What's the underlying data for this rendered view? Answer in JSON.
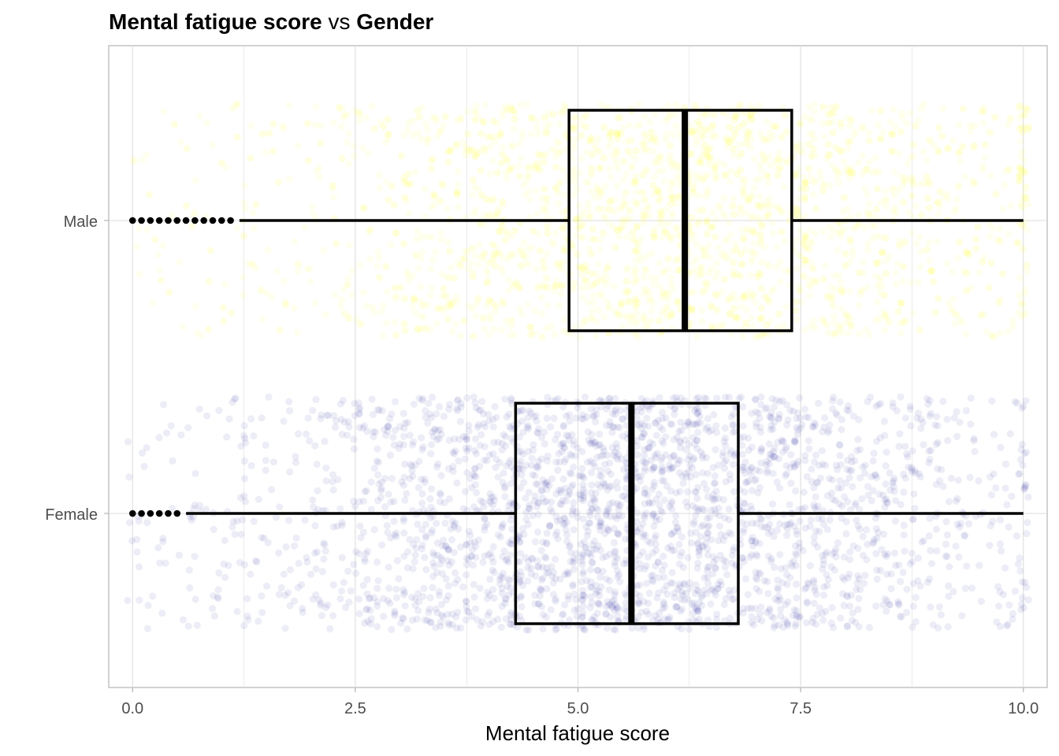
{
  "chart_data": {
    "type": "boxplot",
    "title": {
      "part1": "Mental fatigue score",
      "part2": " vs ",
      "part3": "Gender"
    },
    "xlabel": "Mental fatigue score",
    "ylabel": "",
    "xlim": [
      -0.25,
      10.25
    ],
    "xticks": [
      0.0,
      2.5,
      5.0,
      7.5,
      10.0
    ],
    "xtick_labels": [
      "0.0",
      "2.5",
      "5.0",
      "7.5",
      "10.0"
    ],
    "categories": [
      "Female",
      "Male"
    ],
    "grid": true,
    "series": [
      {
        "category": "Female",
        "color": "#00008b",
        "q1": 4.3,
        "median": 5.6,
        "q3": 6.8,
        "whisker_low": 0.6,
        "whisker_high": 10.0,
        "outliers": [
          0.0,
          0.1,
          0.2,
          0.3,
          0.4,
          0.5
        ]
      },
      {
        "category": "Male",
        "color": "#ffff00",
        "q1": 4.9,
        "median": 6.2,
        "q3": 7.4,
        "whisker_low": 1.2,
        "whisker_high": 10.0,
        "outliers": [
          0.0,
          0.1,
          0.2,
          0.3,
          0.4,
          0.5,
          0.6,
          0.7,
          0.8,
          0.9,
          1.0,
          1.1
        ]
      }
    ]
  }
}
